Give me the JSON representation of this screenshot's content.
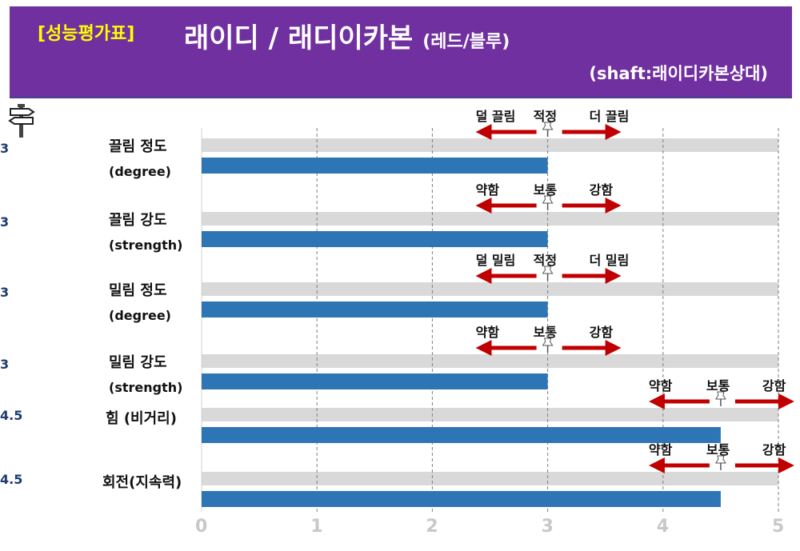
{
  "header": {
    "tag": "[성능평가표]",
    "title": "래이디 / 래디이카본",
    "title_sub": "(레드/블루)",
    "subtitle": "(shaft:래이디카본상대)"
  },
  "colors": {
    "header_bg": "#7030a0",
    "tag": "#ffff00",
    "bar": "#2e75b6",
    "track": "#d9d9d9",
    "arrow": "#c00000"
  },
  "icons": {
    "signpost": "signpost-icon",
    "pin": "pushpin-icon"
  },
  "chart_data": {
    "type": "bar",
    "orientation": "horizontal",
    "xlim": [
      0,
      5
    ],
    "xticks": [
      "0",
      "1",
      "2",
      "3",
      "4",
      "5"
    ],
    "grid": true,
    "rows": [
      {
        "score": "3",
        "label": "끌림 정도",
        "sub": "(degree)",
        "value": 3,
        "marker": 3,
        "left": "덜 끌림",
        "mid": "적정",
        "right": "더 끌림"
      },
      {
        "score": "3",
        "label": "끌림 강도",
        "sub": "(strength)",
        "value": 3,
        "marker": 3,
        "left": "약함",
        "mid": "보통",
        "right": "강함"
      },
      {
        "score": "3",
        "label": "밀림 정도",
        "sub": "(degree)",
        "value": 3,
        "marker": 3,
        "left": "덜 밀림",
        "mid": "적정",
        "right": "더 밀림"
      },
      {
        "score": "3",
        "label": "밀림 강도",
        "sub": "(strength)",
        "value": 3,
        "marker": 3,
        "left": "약함",
        "mid": "보통",
        "right": "강함"
      },
      {
        "score": "4.5",
        "label": "힘 (비거리)",
        "sub": "",
        "value": 4.5,
        "marker": 4.5,
        "left": "약함",
        "mid": "보통",
        "right": "강함"
      },
      {
        "score": "4.5",
        "label": "회전(지속력)",
        "sub": "",
        "value": 4.5,
        "marker": 4.5,
        "left": "약함",
        "mid": "보통",
        "right": "강함"
      }
    ]
  }
}
